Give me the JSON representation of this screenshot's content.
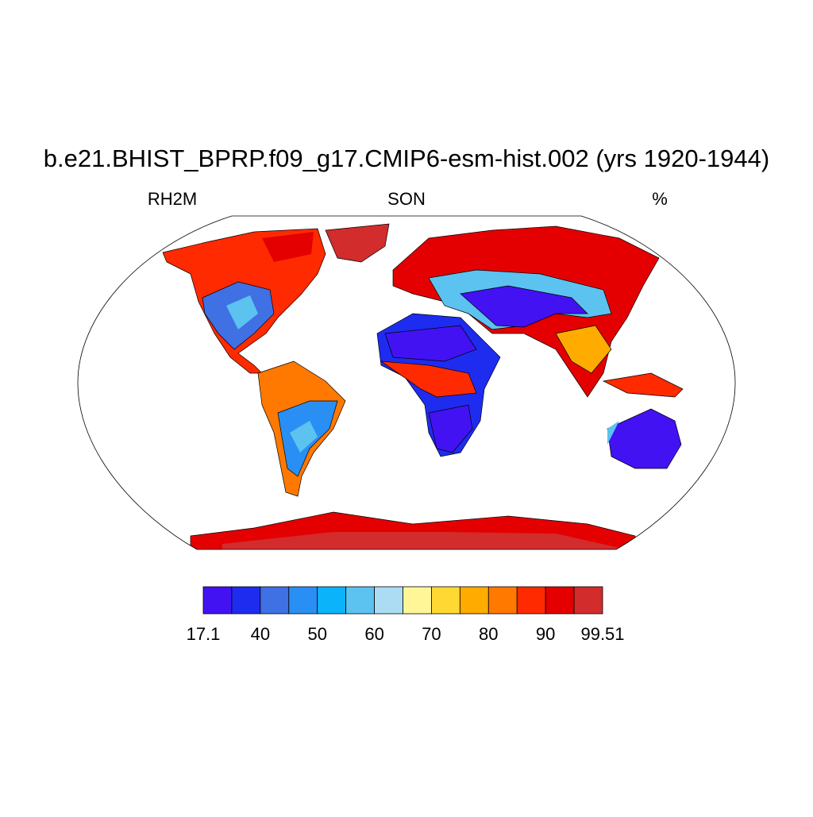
{
  "title": "b.e21.BHIST_BPRP.f09_g17.CMIP6-esm-hist.002 (yrs 1920-1944)",
  "left_label": "RH2M",
  "center_label": "SON",
  "right_label": "%",
  "colorbar": {
    "levels": [
      17.1,
      35,
      40,
      45,
      50,
      55,
      60,
      65,
      70,
      75,
      80,
      85,
      90,
      95,
      99.51
    ],
    "colors": [
      "#4212f2",
      "#1e2cf0",
      "#3f70e4",
      "#2a8ff4",
      "#0bb4fa",
      "#5cc2f0",
      "#acdcf4",
      "#fff697",
      "#ffd834",
      "#ffab00",
      "#ff7800",
      "#ff2a00",
      "#e40000",
      "#d22c2c"
    ],
    "ticks": [
      17.1,
      40,
      50,
      60,
      70,
      80,
      90,
      99.51
    ]
  }
}
